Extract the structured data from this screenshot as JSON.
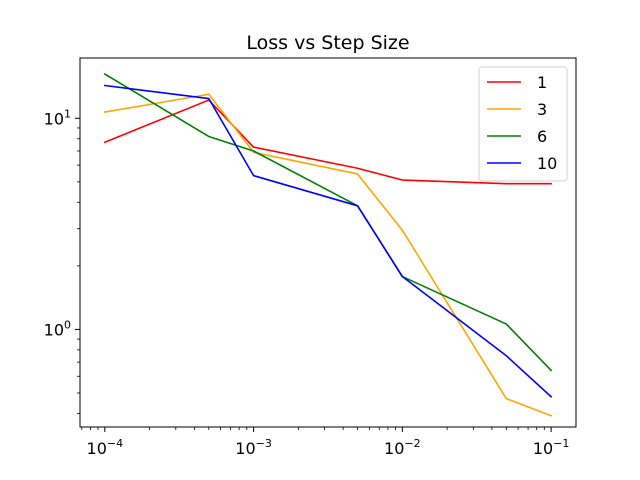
{
  "chart_data": {
    "type": "line",
    "title": "Loss vs Step Size",
    "xlabel": "",
    "ylabel": "",
    "x_scale": "log",
    "y_scale": "log",
    "x": [
      0.0001,
      0.0005,
      0.001,
      0.005,
      0.01,
      0.05,
      0.1
    ],
    "xlim": [
      6.81e-05,
      0.147
    ],
    "ylim": [
      0.345,
      19.3
    ],
    "grid": false,
    "legend_position": "top-right",
    "x_major_ticks": [
      {
        "value": 0.0001,
        "base": "10",
        "exp": "−4"
      },
      {
        "value": 0.001,
        "base": "10",
        "exp": "−3"
      },
      {
        "value": 0.01,
        "base": "10",
        "exp": "−2"
      },
      {
        "value": 0.1,
        "base": "10",
        "exp": "−1"
      }
    ],
    "y_major_ticks": [
      {
        "value": 1,
        "base": "10",
        "exp": "0"
      },
      {
        "value": 10,
        "base": "10",
        "exp": "1"
      }
    ],
    "series": [
      {
        "name": "1",
        "color": "#ff0000",
        "values": [
          7.7,
          12.2,
          7.3,
          5.8,
          5.1,
          4.9,
          4.9
        ]
      },
      {
        "name": "3",
        "color": "#ffa500",
        "values": [
          10.7,
          13.0,
          6.9,
          5.45,
          2.95,
          0.47,
          0.39
        ]
      },
      {
        "name": "6",
        "color": "#008000",
        "values": [
          16.2,
          8.2,
          7.0,
          3.85,
          1.78,
          1.06,
          0.64
        ]
      },
      {
        "name": "10",
        "color": "#0000ff",
        "values": [
          14.3,
          12.4,
          5.35,
          3.85,
          1.78,
          0.75,
          0.48
        ]
      }
    ]
  }
}
